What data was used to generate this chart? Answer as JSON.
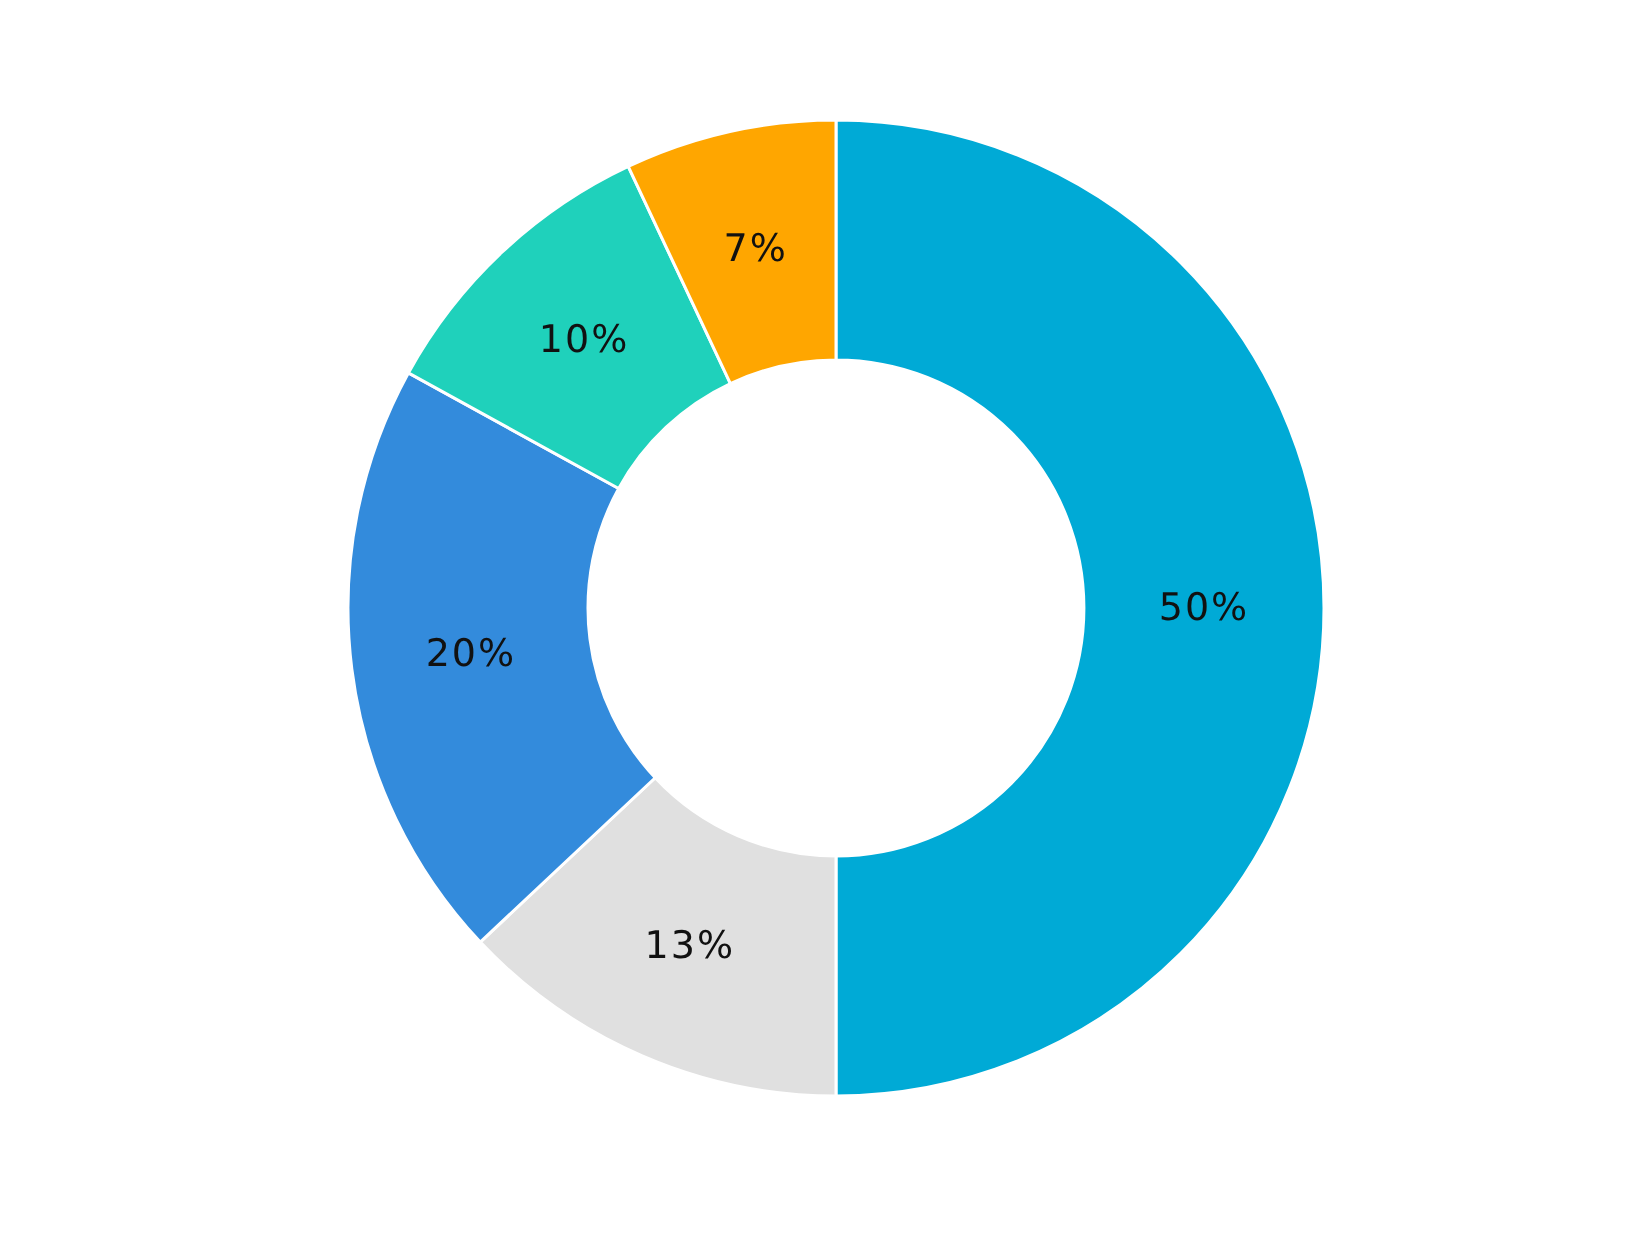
{
  "chart_data": {
    "type": "donut",
    "categories": [
      null,
      null,
      null,
      null,
      null
    ],
    "values": [
      50,
      13,
      20,
      10,
      7
    ],
    "colors": [
      "#00aad6",
      "#e0e0e0",
      "#338bdc",
      "#1fd1bb",
      "#ffa600"
    ],
    "value_labels": [
      "50%",
      "13%",
      "20%",
      "10%",
      "7%"
    ],
    "legend": false
  }
}
